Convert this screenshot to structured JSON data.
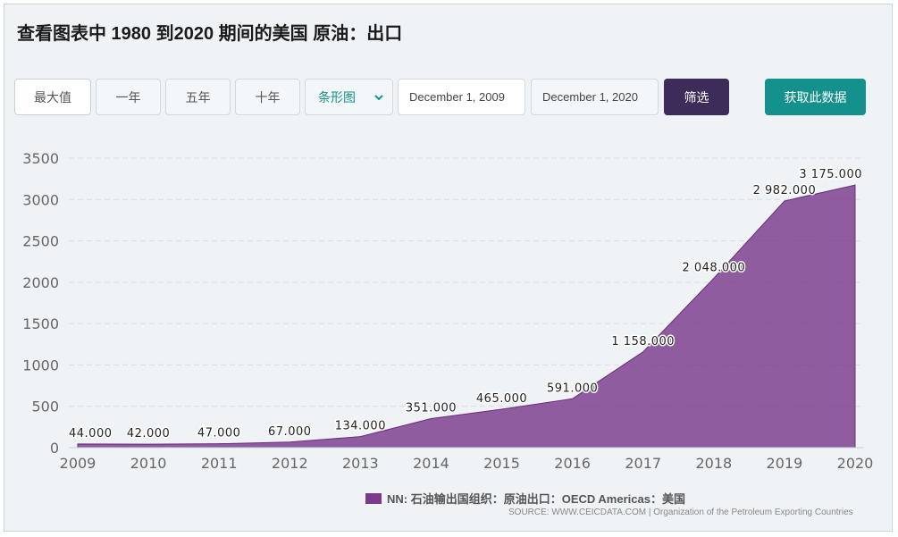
{
  "page": {
    "title": "查看图表中 1980 到2020 期间的美国 原油：出口"
  },
  "controls": {
    "ranges": [
      "最大值",
      "一年",
      "五年",
      "十年"
    ],
    "chart_type": "条形图",
    "start_date": "December 1, 2009",
    "end_date": "December 1, 2020",
    "filter_label": "筛选",
    "get_data_label": "获取此数据"
  },
  "colors": {
    "area_fill": "#7b3b8c",
    "teal": "#14918c",
    "purple_button": "#3d2b5a"
  },
  "chart_data": {
    "type": "area",
    "x": [
      "2009",
      "2010",
      "2011",
      "2012",
      "2013",
      "2014",
      "2015",
      "2016",
      "2017",
      "2018",
      "2019",
      "2020"
    ],
    "values": [
      44,
      42,
      47,
      67,
      134,
      351,
      465,
      591,
      1158,
      2048,
      2982,
      3175
    ],
    "data_labels": [
      "44.000",
      "42.000",
      "47.000",
      "67.000",
      "134.000",
      "351.000",
      "465.000",
      "591.000",
      "1 158.000",
      "2 048.000",
      "2 982.000",
      "3 175.000"
    ],
    "y_ticks": [
      "0",
      "500",
      "1000",
      "1500",
      "2000",
      "2500",
      "3000",
      "3500"
    ],
    "ylim": [
      0,
      3500
    ],
    "grid": true,
    "legend_position": "bottom",
    "series_name": "NN: 石油输出国组织：原油出口：OECD Americas：美国"
  },
  "source": "SOURCE: WWW.CEICDATA.COM | Organization of the Petroleum Exporting Countries"
}
